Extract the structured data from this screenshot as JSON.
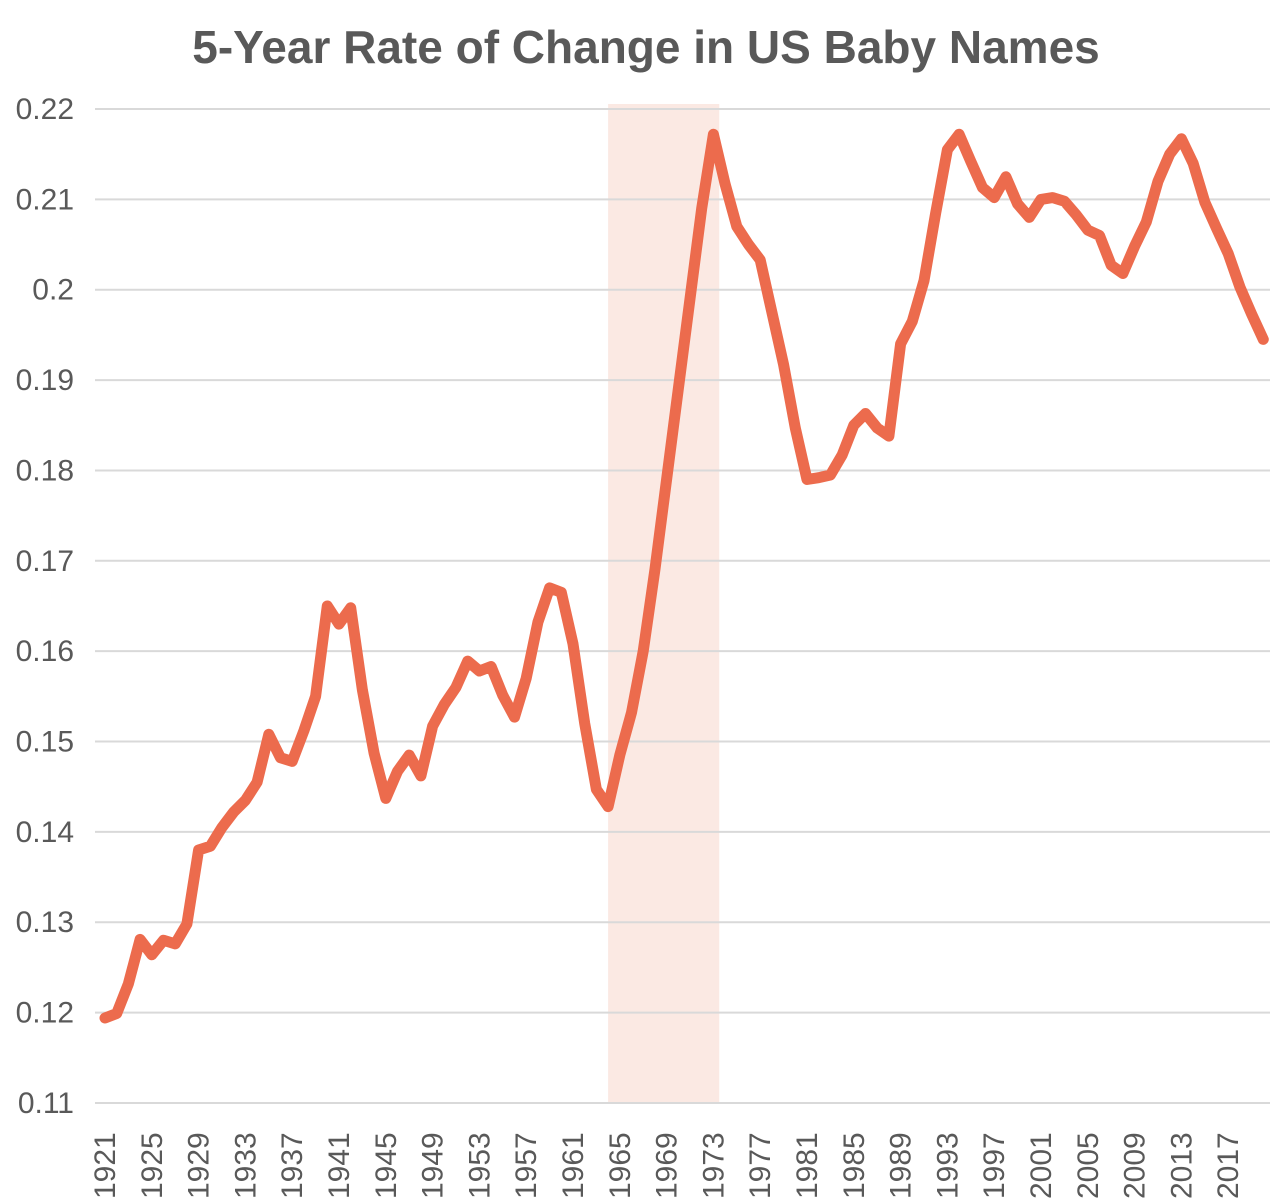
{
  "chart_data": {
    "type": "line",
    "title": "5-Year Rate of Change in US Baby Names",
    "xlabel": "",
    "ylabel": "",
    "xlim": [
      1921,
      2020
    ],
    "ylim": [
      0.11,
      0.22
    ],
    "grid": "horizontal",
    "legend": "none",
    "line_color": "#EC6B4D",
    "grid_color": "#D9D9D9",
    "text_color": "#595959",
    "band": {
      "start_year": 1964,
      "end_year": 1973.5,
      "color": "#FBE9E3"
    },
    "y_ticks": [
      "0.22",
      "0.21",
      "0.2",
      "0.19",
      "0.18",
      "0.17",
      "0.16",
      "0.15",
      "0.14",
      "0.13",
      "0.12",
      "0.11"
    ],
    "y_tick_values": [
      0.22,
      0.21,
      0.2,
      0.19,
      0.18,
      0.17,
      0.16,
      0.15,
      0.14,
      0.13,
      0.12,
      0.11
    ],
    "x_ticks": [
      "1921",
      "1925",
      "1929",
      "1933",
      "1937",
      "1941",
      "1945",
      "1949",
      "1953",
      "1957",
      "1961",
      "1965",
      "1969",
      "1973",
      "1977",
      "1981",
      "1985",
      "1989",
      "1993",
      "1997",
      "2001",
      "2005",
      "2009",
      "2013",
      "2017"
    ],
    "x": [
      1921,
      1922,
      1923,
      1924,
      1925,
      1926,
      1927,
      1928,
      1929,
      1930,
      1931,
      1932,
      1933,
      1934,
      1935,
      1936,
      1937,
      1938,
      1939,
      1940,
      1941,
      1942,
      1943,
      1944,
      1945,
      1946,
      1947,
      1948,
      1949,
      1950,
      1951,
      1952,
      1953,
      1954,
      1955,
      1956,
      1957,
      1958,
      1959,
      1960,
      1961,
      1962,
      1963,
      1964,
      1965,
      1966,
      1967,
      1968,
      1969,
      1970,
      1971,
      1972,
      1973,
      1974,
      1975,
      1976,
      1977,
      1978,
      1979,
      1980,
      1981,
      1982,
      1983,
      1984,
      1985,
      1986,
      1987,
      1988,
      1989,
      1990,
      1991,
      1992,
      1993,
      1994,
      1995,
      1996,
      1997,
      1998,
      1999,
      2000,
      2001,
      2002,
      2003,
      2004,
      2005,
      2006,
      2007,
      2008,
      2009,
      2010,
      2011,
      2012,
      2013,
      2014,
      2015,
      2016,
      2017,
      2018,
      2019,
      2020
    ],
    "values": [
      0.1194,
      0.1199,
      0.1232,
      0.1281,
      0.1264,
      0.128,
      0.1276,
      0.1298,
      0.138,
      0.1384,
      0.1405,
      0.1422,
      0.1435,
      0.1455,
      0.1508,
      0.1482,
      0.1478,
      0.1512,
      0.155,
      0.165,
      0.163,
      0.1648,
      0.1557,
      0.1487,
      0.1437,
      0.1467,
      0.1485,
      0.1462,
      0.1517,
      0.1541,
      0.156,
      0.1589,
      0.1578,
      0.1583,
      0.1551,
      0.1527,
      0.157,
      0.1632,
      0.167,
      0.1665,
      0.1608,
      0.152,
      0.1447,
      0.1428,
      0.1485,
      0.1532,
      0.16,
      0.169,
      0.179,
      0.189,
      0.199,
      0.209,
      0.2172,
      0.2117,
      0.207,
      0.205,
      0.2033,
      0.1975,
      0.1917,
      0.1847,
      0.179,
      0.1792,
      0.1795,
      0.1817,
      0.185,
      0.1863,
      0.1847,
      0.1838,
      0.194,
      0.1965,
      0.201,
      0.2085,
      0.2155,
      0.2172,
      0.2142,
      0.2113,
      0.2102,
      0.2125,
      0.2095,
      0.208,
      0.21,
      0.2102,
      0.2098,
      0.2083,
      0.2066,
      0.206,
      0.2027,
      0.2018,
      0.2048,
      0.2075,
      0.212,
      0.215,
      0.2167,
      0.214,
      0.2097,
      0.2068,
      0.204,
      0.2003,
      0.1973,
      0.1945
    ]
  }
}
